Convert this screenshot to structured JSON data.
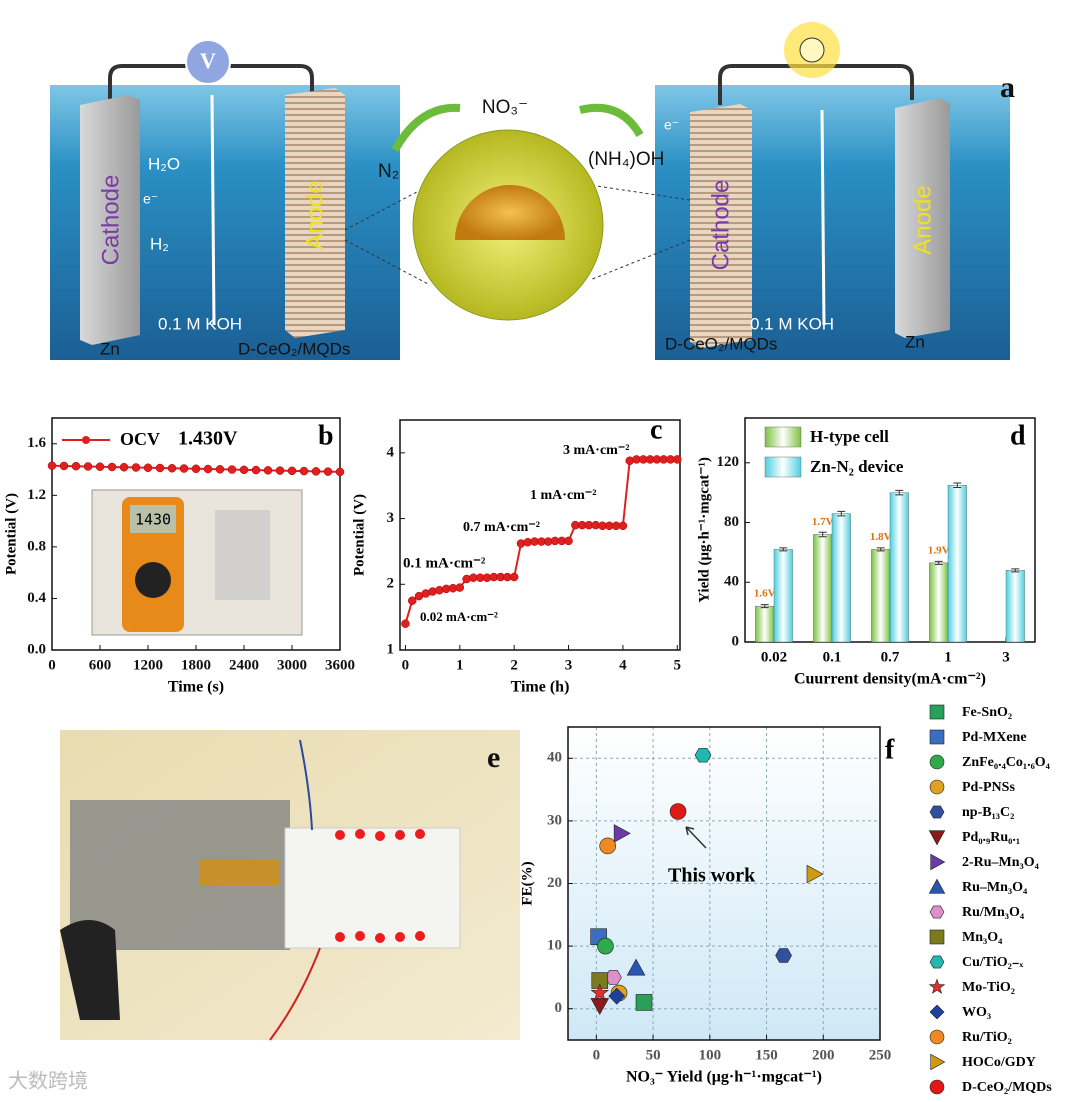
{
  "panel_a": {
    "letter": "a",
    "voltmeter": "V",
    "left": {
      "cathode": "Cathode",
      "anode": "Anode",
      "h2o": "H₂O",
      "electron": "e⁻",
      "h2": "H₂",
      "electrolyte": "0.1 M KOH",
      "zn": "Zn",
      "catalyst": "D-CeO₂/MQDs"
    },
    "middle": {
      "n2": "N₂",
      "no3": "NO₃⁻",
      "nh4oh": "(NH₄)OH",
      "electron": "e⁻"
    },
    "right": {
      "cathode": "Cathode",
      "anode": "Anode",
      "electrolyte": "0.1 M KOH",
      "catalyst": "D-CeO₂/MQDs",
      "zn": "Zn"
    }
  },
  "chart_data": [
    {
      "type": "line",
      "letter": "b",
      "xlabel": "Time (s)",
      "ylabel": "Potential (V)",
      "annotations": [
        "1.430V"
      ],
      "inset_display": "1430",
      "xlim": [
        0,
        3600
      ],
      "ylim": [
        0,
        1.8
      ],
      "xticks": [
        0,
        600,
        1200,
        1800,
        2400,
        3000,
        3600
      ],
      "yticks": [
        {
          "value": 0,
          "label": "0.0"
        },
        0.4,
        0.8,
        1.2,
        1.6
      ],
      "x": [
        0,
        150,
        300,
        450,
        600,
        750,
        900,
        1050,
        1200,
        1350,
        1500,
        1650,
        1800,
        1950,
        2100,
        2250,
        2400,
        2550,
        2700,
        2850,
        3000,
        3150,
        3300,
        3450,
        3600
      ],
      "series": [
        {
          "name": "OCV",
          "color": "#e02020",
          "values": [
            1.43,
            1.428,
            1.426,
            1.424,
            1.422,
            1.42,
            1.418,
            1.416,
            1.414,
            1.412,
            1.41,
            1.408,
            1.406,
            1.404,
            1.402,
            1.4,
            1.398,
            1.396,
            1.394,
            1.392,
            1.39,
            1.388,
            1.386,
            1.384,
            1.382
          ]
        }
      ]
    },
    {
      "type": "line",
      "letter": "c",
      "xlabel": "Time (h)",
      "ylabel": "Potential (V)",
      "annotations": [
        "0.02 mA·cm⁻²",
        "0.1 mA·cm⁻²",
        "0.7 mA·cm⁻²",
        "1 mA·cm⁻²",
        "3 mA·cm⁻²"
      ],
      "xlim": [
        -0.1,
        5.05
      ],
      "ylim": [
        1,
        4.5
      ],
      "xticks": [
        0,
        1,
        2,
        3,
        4,
        5
      ],
      "yticks": [
        1,
        2,
        3,
        4
      ],
      "x": [
        0,
        0.125,
        0.25,
        0.375,
        0.5,
        0.625,
        0.75,
        0.875,
        1,
        1.125,
        1.25,
        1.375,
        1.5,
        1.625,
        1.75,
        1.875,
        2,
        2.125,
        2.25,
        2.375,
        2.5,
        2.625,
        2.75,
        2.875,
        3,
        3.125,
        3.25,
        3.375,
        3.5,
        3.625,
        3.75,
        3.875,
        4,
        4.125,
        4.25,
        4.375,
        4.5,
        4.625,
        4.75,
        4.875,
        5
      ],
      "series": [
        {
          "name": "Potential",
          "color": "#e02020",
          "values": [
            1.4,
            1.75,
            1.82,
            1.86,
            1.89,
            1.91,
            1.93,
            1.94,
            1.95,
            2.08,
            2.1,
            2.1,
            2.1,
            2.11,
            2.11,
            2.11,
            2.11,
            2.62,
            2.64,
            2.65,
            2.65,
            2.65,
            2.66,
            2.66,
            2.66,
            2.9,
            2.9,
            2.9,
            2.9,
            2.89,
            2.89,
            2.89,
            2.89,
            3.88,
            3.9,
            3.9,
            3.9,
            3.9,
            3.9,
            3.9,
            3.9
          ]
        }
      ]
    },
    {
      "type": "bar",
      "letter": "d",
      "xlabel": "Cuurrent density(mA·cm⁻²)",
      "ylabel": "Yield (μg·h⁻¹·mgcat⁻¹)",
      "annotations": [
        "1.6V",
        "1.7V",
        "1.8V",
        "1.9V",
        null
      ],
      "categories": [
        "0.02",
        "0.1",
        "0.7",
        "1",
        "3"
      ],
      "ylim": [
        0,
        150
      ],
      "yticks": [
        0,
        40,
        80,
        120
      ],
      "series": [
        {
          "name": "H-type  cell",
          "color": "#7cc242",
          "values": [
            24,
            72,
            62,
            53,
            null
          ],
          "errors": [
            1,
            1.5,
            1,
            1,
            null
          ]
        },
        {
          "name": "Zn-N₂  device",
          "color": "#4fd0e0",
          "values": [
            62,
            86,
            100,
            105,
            48
          ],
          "errors": [
            1,
            1.5,
            1.5,
            1.5,
            1
          ]
        }
      ]
    },
    {
      "type": "scatter",
      "letter": "f",
      "xlabel": "NO₃⁻ Yield (μg·h⁻¹·mgcat⁻¹)",
      "ylabel": "FE(%)",
      "annotations": [
        "This work"
      ],
      "grid": true,
      "xlim": [
        -25,
        250
      ],
      "ylim": [
        -5,
        45
      ],
      "xticks": [
        0,
        50,
        100,
        150,
        200,
        250
      ],
      "yticks": [
        0,
        10,
        20,
        30,
        40
      ],
      "series": [
        {
          "name": "Fe-SnO₂",
          "color": "#27a05a",
          "marker": "square",
          "x": [
            42
          ],
          "values": [
            1
          ]
        },
        {
          "name": "Pd-MXene",
          "color": "#3a6fc0",
          "marker": "square",
          "x": [
            2
          ],
          "values": [
            11.5
          ]
        },
        {
          "name": "ZnFe₀.₄Co₁.₆O₄",
          "color": "#2eaa4a",
          "marker": "circle",
          "x": [
            8
          ],
          "values": [
            10
          ]
        },
        {
          "name": "Pd-PNSs",
          "color": "#e0a020",
          "marker": "circle",
          "x": [
            20
          ],
          "values": [
            2.5
          ]
        },
        {
          "name": "np-B₁₃C₂",
          "color": "#3050a0",
          "marker": "hexagon",
          "x": [
            165
          ],
          "values": [
            8.5
          ]
        },
        {
          "name": "Pd₀.₉Ru₀.₁",
          "color": "#8b1a1a",
          "marker": "down",
          "x": [
            3
          ],
          "values": [
            0.5
          ]
        },
        {
          "name": "2-Ru–Mn₃O₄",
          "color": "#6a3aa8",
          "marker": "right",
          "x": [
            22
          ],
          "values": [
            28
          ]
        },
        {
          "name": "Ru–Mn₃O₄",
          "color": "#2a55b0",
          "marker": "up",
          "x": [
            35
          ],
          "values": [
            6.5
          ]
        },
        {
          "name": "Ru/Mn₃O₄",
          "color": "#e090c8",
          "marker": "hexagon",
          "x": [
            15
          ],
          "values": [
            5
          ]
        },
        {
          "name": "Mn₃O₄",
          "color": "#7a7a20",
          "marker": "square",
          "x": [
            3
          ],
          "values": [
            4.5
          ]
        },
        {
          "name": "Cu/TiO₂₋ₓ",
          "color": "#20b8b0",
          "marker": "hexagon",
          "x": [
            94
          ],
          "values": [
            40.5
          ]
        },
        {
          "name": "Mo-TiO₂",
          "color": "#e03030",
          "marker": "star",
          "x": [
            3
          ],
          "values": [
            2.5
          ]
        },
        {
          "name": "WO₃",
          "color": "#2040a0",
          "marker": "diamond",
          "x": [
            18
          ],
          "values": [
            2
          ]
        },
        {
          "name": "Ru/TiO₂",
          "color": "#f08a20",
          "marker": "circle",
          "x": [
            10
          ],
          "values": [
            26
          ]
        },
        {
          "name": "HOCo/GDY",
          "color": "#d09a10",
          "marker": "right",
          "x": [
            192
          ],
          "values": [
            21.5
          ]
        },
        {
          "name": "D-CeO₂/MQDs",
          "color": "#e01818",
          "marker": "circle",
          "x": [
            72
          ],
          "values": [
            31.5
          ]
        }
      ]
    }
  ],
  "panel_e": {
    "letter": "e"
  },
  "watermark": "大数跨境"
}
